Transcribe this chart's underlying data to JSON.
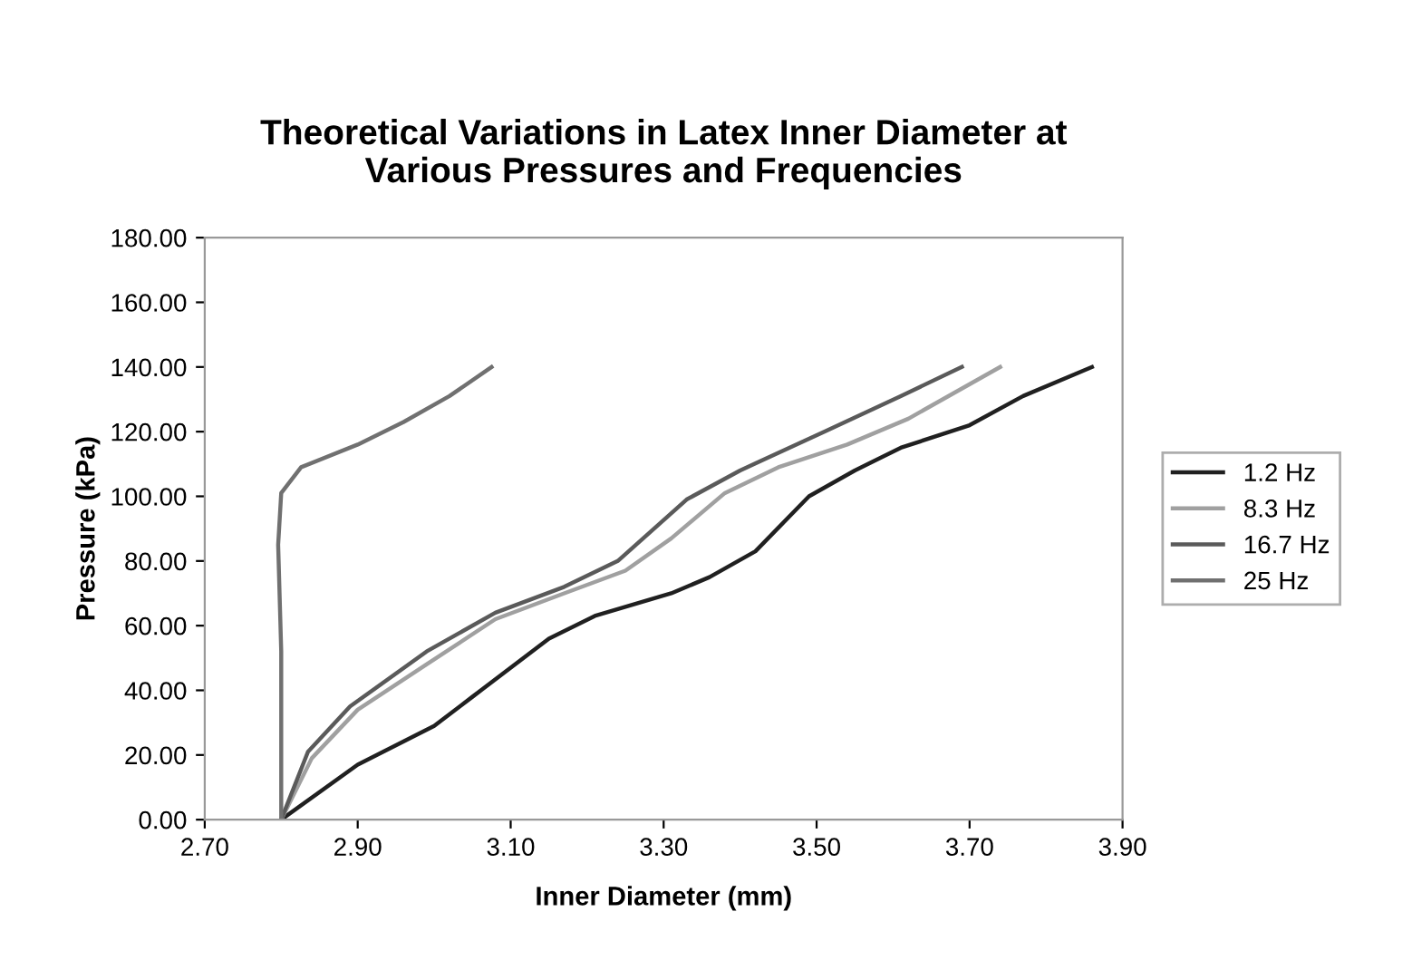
{
  "chart_data": {
    "type": "line",
    "title": "Theoretical Variations in Latex Inner Diameter at\nVarious Pressures and Frequencies",
    "xlabel": "Inner Diameter (mm)",
    "ylabel": "Pressure (kPa)",
    "xlim": [
      2.7,
      3.9
    ],
    "ylim": [
      0,
      180
    ],
    "xticks": [
      {
        "value": 2.7,
        "label": "2.70"
      },
      {
        "value": 2.9,
        "label": "2.90"
      },
      {
        "value": 3.1,
        "label": "3.10"
      },
      {
        "value": 3.3,
        "label": "3.30"
      },
      {
        "value": 3.5,
        "label": "3.50"
      },
      {
        "value": 3.7,
        "label": "3.70"
      },
      {
        "value": 3.9,
        "label": "3.90"
      }
    ],
    "yticks": [
      {
        "value": 0,
        "label": "0.00"
      },
      {
        "value": 20,
        "label": "20.00"
      },
      {
        "value": 40,
        "label": "40.00"
      },
      {
        "value": 60,
        "label": "60.00"
      },
      {
        "value": 80,
        "label": "80.00"
      },
      {
        "value": 100,
        "label": "100.00"
      },
      {
        "value": 120,
        "label": "120.00"
      },
      {
        "value": 140,
        "label": "140.00"
      },
      {
        "value": 160,
        "label": "160.00"
      },
      {
        "value": 180,
        "label": "180.00"
      }
    ],
    "grid": false,
    "legend": "right",
    "marker": "none",
    "line_style": "solid",
    "series": [
      {
        "name": "1.2 Hz",
        "color": "#202020",
        "x": [
          2.8,
          2.9,
          3.0,
          3.05,
          3.15,
          3.21,
          3.31,
          3.36,
          3.42,
          3.49,
          3.55,
          3.61,
          3.7,
          3.77,
          3.86
        ],
        "values": [
          0,
          17,
          29,
          38,
          56,
          63,
          70,
          75,
          83,
          100,
          108,
          115,
          122,
          131,
          140
        ]
      },
      {
        "name": "8.3 Hz",
        "color": "#a0a0a0",
        "x": [
          2.8,
          2.84,
          2.9,
          2.99,
          3.08,
          3.17,
          3.25,
          3.31,
          3.38,
          3.45,
          3.54,
          3.62,
          3.74
        ],
        "values": [
          0,
          19,
          34,
          48,
          62,
          70,
          77,
          87,
          101,
          109,
          116,
          124,
          140
        ]
      },
      {
        "name": "16.7 Hz",
        "color": "#5a5a5a",
        "x": [
          2.8,
          2.835,
          2.89,
          2.99,
          3.08,
          3.17,
          3.24,
          3.33,
          3.4,
          3.51,
          3.61,
          3.69
        ],
        "values": [
          0,
          21,
          35,
          52,
          64,
          72,
          80,
          99,
          108,
          120,
          131,
          140
        ]
      },
      {
        "name": "25 Hz",
        "color": "#707070",
        "x": [
          2.8,
          2.8,
          2.796,
          2.8,
          2.826,
          2.9,
          2.96,
          3.02,
          3.075
        ],
        "values": [
          0,
          52,
          85,
          101,
          109,
          116,
          123,
          131,
          140
        ]
      }
    ]
  }
}
